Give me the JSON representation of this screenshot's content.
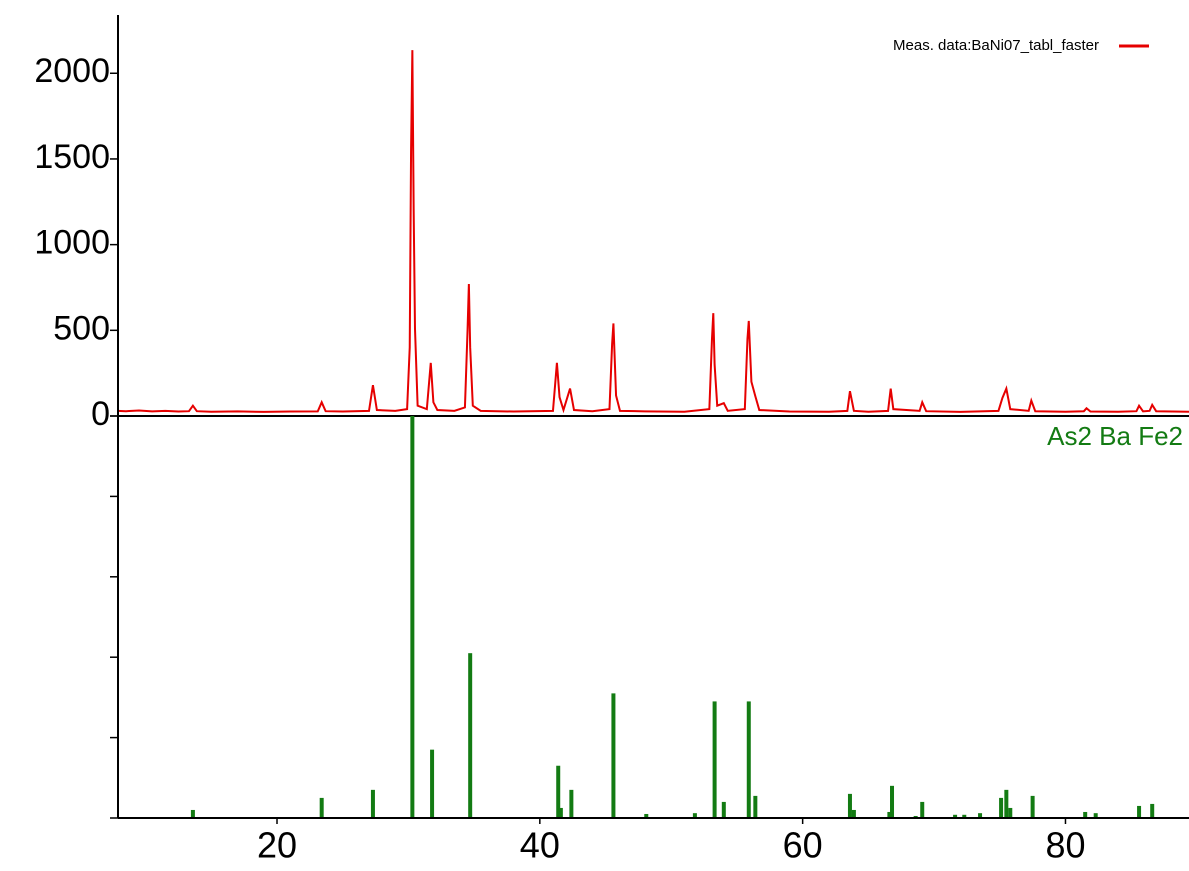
{
  "chart_data": [
    {
      "type": "line",
      "x": [
        7.9,
        8.5,
        9.5,
        10.5,
        11.5,
        12.5,
        13.3,
        13.6,
        13.9,
        15,
        17,
        19,
        21,
        23.1,
        23.4,
        23.7,
        25,
        27.0,
        27.3,
        27.6,
        29.0,
        29.9,
        30.1,
        30.2,
        30.3,
        30.4,
        30.5,
        30.7,
        31.4,
        31.7,
        31.9,
        32.2,
        33.5,
        34.3,
        34.5,
        34.6,
        34.7,
        34.9,
        35.5,
        38,
        41.0,
        41.3,
        41.5,
        41.8,
        42.3,
        42.6,
        44,
        45.3,
        45.5,
        45.6,
        45.8,
        46.1,
        48,
        51,
        52.9,
        53.1,
        53.2,
        53.3,
        53.5,
        54.0,
        54.3,
        55.6,
        55.8,
        55.9,
        56.1,
        56.4,
        56.7,
        59,
        62,
        63.4,
        63.6,
        63.9,
        65,
        66.5,
        66.7,
        66.9,
        68.9,
        69.1,
        69.4,
        72,
        74.9,
        75.2,
        75.5,
        75.8,
        77.2,
        77.4,
        77.7,
        80,
        81.4,
        81.6,
        81.9,
        84,
        85.4,
        85.6,
        85.9,
        86.4,
        86.6,
        86.9,
        89.4
      ],
      "series": [
        {
          "name": "Meas. data:BaNi07_tabl_faster",
          "color": "#e60000",
          "values": [
            30,
            28,
            32,
            27,
            30,
            26,
            28,
            60,
            28,
            25,
            27,
            24,
            26,
            27,
            80,
            28,
            26,
            30,
            180,
            35,
            30,
            40,
            400,
            1540,
            2135,
            1200,
            510,
            60,
            40,
            310,
            80,
            35,
            30,
            50,
            500,
            770,
            400,
            60,
            30,
            26,
            30,
            310,
            110,
            35,
            160,
            35,
            28,
            40,
            420,
            540,
            120,
            30,
            27,
            25,
            40,
            450,
            600,
            300,
            60,
            75,
            30,
            40,
            450,
            555,
            200,
            115,
            35,
            26,
            25,
            30,
            145,
            30,
            25,
            30,
            160,
            40,
            30,
            80,
            28,
            24,
            30,
            105,
            160,
            40,
            30,
            90,
            28,
            25,
            28,
            45,
            26,
            25,
            28,
            60,
            27,
            30,
            65,
            28,
            25
          ]
        }
      ],
      "xlim": [
        7.9,
        89.4
      ],
      "ylim": [
        0,
        2340
      ],
      "yticks": [
        0,
        500,
        1000,
        1500,
        2000
      ],
      "legend": "upper right"
    },
    {
      "type": "stick",
      "x": [
        13.6,
        23.4,
        27.3,
        30.3,
        31.8,
        34.7,
        41.4,
        41.6,
        42.4,
        45.6,
        48.1,
        51.8,
        53.3,
        54.0,
        55.9,
        56.4,
        63.6,
        63.9,
        66.6,
        66.8,
        68.6,
        69.1,
        71.6,
        72.3,
        73.5,
        75.1,
        75.5,
        75.8,
        77.5,
        81.5,
        82.3,
        85.6,
        86.6
      ],
      "series": [
        {
          "name": "As2 Ba Fe2",
          "color": "#137b13",
          "values": [
            2,
            5,
            7,
            100,
            17,
            41,
            13,
            2.5,
            7,
            31,
            1,
            1.2,
            29,
            4,
            29,
            5.5,
            6,
            2,
            1.5,
            8,
            0.5,
            4,
            0.8,
            0.8,
            1.2,
            5,
            7,
            2.5,
            5.5,
            1.5,
            1.2,
            3,
            3.5
          ]
        }
      ],
      "xlim": [
        7.9,
        89.4
      ],
      "ylim": [
        0,
        100
      ],
      "yticks": [
        0,
        20,
        40,
        60,
        80,
        100
      ],
      "xticks": [
        20,
        40,
        60,
        80
      ]
    }
  ]
}
